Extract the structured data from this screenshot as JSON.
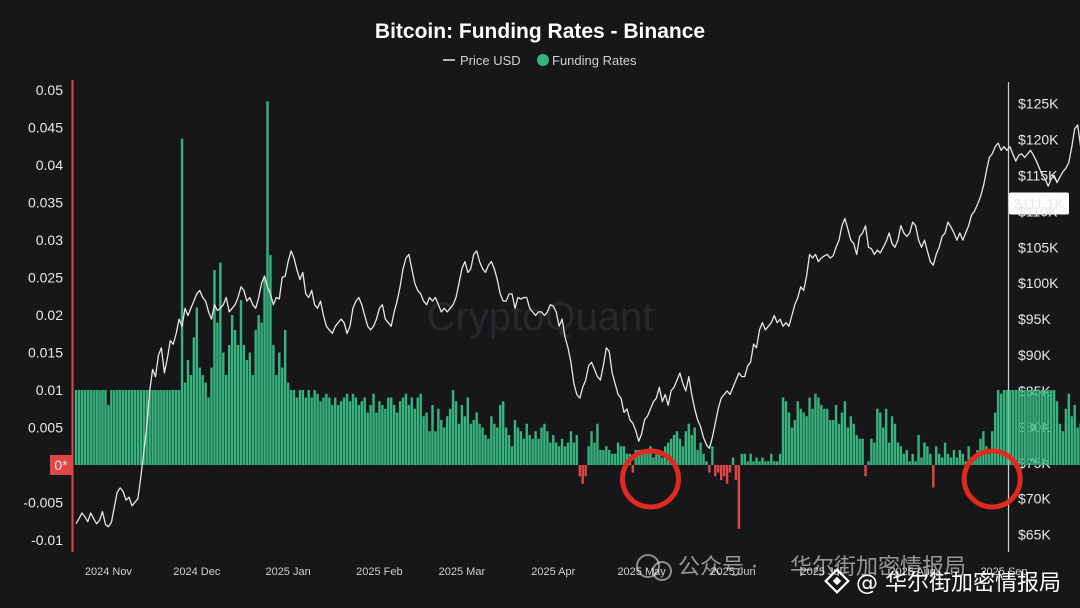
{
  "chart_data": {
    "type": "bar+line",
    "title": "Bitcoin: Funding Rates - Binance",
    "legend": [
      {
        "label": "Price USD",
        "color": "#e6e6e6",
        "marker": "line"
      },
      {
        "label": "Funding Rates",
        "color": "#36b37e",
        "marker": "dot"
      }
    ],
    "legend_placement": "top-center",
    "watermark": "CryptoQuant",
    "x_ticks": [
      "2024 Nov",
      "2024 Dec",
      "2025 Jan",
      "2025 Feb",
      "2025 Mar",
      "2025 Apr",
      "2025 May",
      "2025 Jun",
      "2025 Jul",
      "2025 Aug",
      "2025 Sep"
    ],
    "x_range": [
      "2024-10-21",
      "2025-09-01"
    ],
    "y_left": {
      "label": "",
      "ylim": [
        -0.012,
        0.051
      ],
      "ticks": [
        "0.05",
        "0.045",
        "0.04",
        "0.035",
        "0.03",
        "0.025",
        "0.02",
        "0.015",
        "0.01",
        "0.005",
        "0*",
        "-0.005",
        "-0.01"
      ],
      "tick_values": [
        0.05,
        0.045,
        0.04,
        0.035,
        0.03,
        0.025,
        0.02,
        0.015,
        0.01,
        0.005,
        0,
        -0.005,
        -0.01
      ]
    },
    "y_right": {
      "label": "",
      "ylim": [
        65000,
        128000
      ],
      "ticks": [
        "$125K",
        "$120K",
        "$115K",
        "$111.1K",
        "$110K",
        "$105K",
        "$100K",
        "$95K",
        "$90K",
        "$85K",
        "$80K",
        "$75K",
        "$70K",
        "$65K"
      ],
      "tick_values": [
        125000,
        120000,
        115000,
        111100,
        110000,
        105000,
        100000,
        95000,
        90000,
        85000,
        80000,
        75000,
        70000,
        65000
      ],
      "current_value_label": "$111.1K"
    },
    "series": [
      {
        "name": "Funding Rates",
        "type": "bar",
        "color_positive": "#36b37e",
        "color_negative": "#e04646",
        "x_start": "2024-10-21",
        "step_days": 1,
        "values": [
          0.01,
          0.01,
          0.01,
          0.01,
          0.01,
          0.01,
          0.01,
          0.01,
          0.01,
          0.01,
          0.01,
          0.008,
          0.01,
          0.01,
          0.01,
          0.01,
          0.01,
          0.01,
          0.01,
          0.01,
          0.01,
          0.01,
          0.01,
          0.01,
          0.01,
          0.01,
          0.01,
          0.01,
          0.01,
          0.01,
          0.01,
          0.01,
          0.01,
          0.01,
          0.01,
          0.01,
          0.0435,
          0.011,
          0.014,
          0.012,
          0.017,
          0.021,
          0.013,
          0.012,
          0.011,
          0.009,
          0.013,
          0.026,
          0.019,
          0.027,
          0.015,
          0.012,
          0.016,
          0.02,
          0.018,
          0.016,
          0.022,
          0.016,
          0.014,
          0.015,
          0.012,
          0.018,
          0.02,
          0.019,
          0.025,
          0.0485,
          0.028,
          0.016,
          0.012,
          0.015,
          0.013,
          0.018,
          0.011,
          0.01,
          0.01,
          0.009,
          0.01,
          0.01,
          0.009,
          0.01,
          0.009,
          0.01,
          0.0095,
          0.0085,
          0.009,
          0.0095,
          0.009,
          0.008,
          0.009,
          0.008,
          0.0085,
          0.009,
          0.0095,
          0.0085,
          0.0095,
          0.009,
          0.008,
          0.0085,
          0.009,
          0.007,
          0.008,
          0.0095,
          0.007,
          0.0085,
          0.008,
          0.0075,
          0.009,
          0.009,
          0.008,
          0.007,
          0.0085,
          0.009,
          0.0095,
          0.008,
          0.009,
          0.0075,
          0.009,
          0.0095,
          0.0065,
          0.007,
          0.0045,
          0.008,
          0.0045,
          0.0075,
          0.006,
          0.005,
          0.0065,
          0.0075,
          0.01,
          0.0085,
          0.0055,
          0.008,
          0.0065,
          0.009,
          0.0055,
          0.006,
          0.007,
          0.0055,
          0.005,
          0.004,
          0.0035,
          0.0065,
          0.0055,
          0.005,
          0.008,
          0.0085,
          0.005,
          0.004,
          0.0025,
          0.006,
          0.005,
          0.0045,
          0.0035,
          0.0055,
          0.004,
          0.0035,
          0.0045,
          0.0035,
          0.005,
          0.0055,
          0.0045,
          0.003,
          0.004,
          0.003,
          0.0025,
          0.0035,
          0.0025,
          0.003,
          0.0045,
          0.003,
          0.004,
          -0.0015,
          -0.0025,
          -0.0015,
          0.0025,
          0.0045,
          0.003,
          0.0055,
          0.002,
          0.002,
          0.0025,
          0.002,
          0.0015,
          0.0015,
          0.003,
          0.0025,
          0.0025,
          0.0015,
          0.0015,
          -0.001,
          0.002,
          0.002,
          0.0015,
          0.002,
          0.0015,
          0.0025,
          0.001,
          0.0015,
          0.002,
          0.001,
          0.0025,
          0.003,
          0.0035,
          0.004,
          0.0045,
          0.0035,
          0.0025,
          0.0045,
          0.0055,
          0.004,
          0.005,
          0.002,
          0.003,
          0.0015,
          0.0005,
          -0.001,
          0.0025,
          -0.0015,
          -0.001,
          -0.002,
          -0.0015,
          -0.0025,
          -0.001,
          0.001,
          -0.002,
          -0.0085,
          0.0015,
          0.0015,
          0.0005,
          0.0015,
          0.0005,
          0.001,
          0.0005,
          0.001,
          0.0005,
          0.0005,
          0.0015,
          0.0005,
          0.0005,
          0.0015,
          0.009,
          0.0085,
          0.007,
          0.005,
          0.006,
          0.0085,
          0.0075,
          0.007,
          0.0065,
          0.009,
          0.0075,
          0.0095,
          0.009,
          0.008,
          0.0075,
          0.0075,
          0.006,
          0.006,
          0.008,
          0.0055,
          0.007,
          0.0085,
          0.005,
          0.0065,
          0.0055,
          0.004,
          0.0035,
          0.0035,
          -0.0015,
          0.0005,
          0.0035,
          0.003,
          0.0075,
          0.007,
          0.005,
          0.0075,
          0.003,
          0.0065,
          0.0055,
          0.003,
          0.0025,
          0.0015,
          0.002,
          0.0005,
          0.0015,
          0.0005,
          0.004,
          0.001,
          0.003,
          0.0025,
          0.0015,
          -0.003,
          0.0025,
          0.0015,
          0.001,
          0.003,
          0.0015,
          0.001,
          0.002,
          0.001,
          0.002,
          0.0015,
          0.0005,
          0.0025,
          0.0005,
          0.001,
          0.002,
          0.0035,
          0.0045,
          0.0025,
          0.0015,
          0.0045,
          0.007,
          0.01,
          0.0095,
          0.01,
          0.01,
          0.01,
          0.01,
          0.01,
          0.01,
          0.01,
          0.01,
          0.01,
          0.01,
          0.01,
          0.01,
          0.01,
          0.01,
          0.01,
          0.01,
          0.01,
          0.01,
          0.0085,
          0.0055,
          0.0045,
          0.0075,
          0.0095,
          0.0065,
          0.008,
          0.005,
          0.0055,
          0.007,
          0.0075,
          0.007,
          0.0065,
          0.005,
          0.007,
          0.008,
          0.01,
          0.0055,
          0.0075,
          0.0065,
          0.005,
          0.0075,
          0.0085,
          0.0065,
          0.004,
          0.0055,
          0.0075,
          0.007,
          0.0045,
          0.005,
          0.0055,
          0.0065,
          0.0065,
          0.0075,
          0.004,
          0.0035,
          0.006,
          0.007,
          0.006,
          0.0065,
          0.0035,
          0.006,
          0.006,
          0.0045,
          0.0035,
          0.0045,
          0.007,
          0.0065,
          0.0035,
          0.006,
          -0.001,
          0.003,
          0.0045,
          0.0035,
          0.0045,
          0.0085,
          0.0045,
          0.005,
          0.003,
          0.0095,
          0.01,
          0.0095,
          0.009,
          0.0085,
          0.0075,
          0.0035,
          0.0045,
          0.004,
          0.0035,
          0.0035,
          -0.0015,
          -0.0035,
          -0.003,
          -0.0025,
          0.0015,
          0.002,
          -0.0005,
          0.002,
          0.0035,
          0.0055
        ]
      },
      {
        "name": "Price USD",
        "type": "line",
        "color": "#e6e6e6",
        "x_start": "2024-10-21",
        "step_days": 1,
        "values": [
          66500,
          67200,
          68000,
          67500,
          66800,
          68000,
          67200,
          66500,
          67000,
          68200,
          66400,
          66100,
          66700,
          68800,
          70900,
          71500,
          71000,
          69800,
          70200,
          69000,
          69500,
          70000,
          73000,
          76500,
          80000,
          85000,
          88000,
          87000,
          90000,
          91000,
          87500,
          89500,
          92000,
          91500,
          93000,
          95000,
          94000,
          96500,
          95500,
          96500,
          97500,
          98500,
          99000,
          98000,
          97500,
          96000,
          95000,
          97000,
          96200,
          96500,
          97000,
          98000,
          96000,
          96500,
          97000,
          98000,
          99500,
          99000,
          97500,
          98000,
          97000,
          96500,
          98000,
          100000,
          101000,
          99500,
          98500,
          97000,
          98000,
          97800,
          100800,
          101000,
          103000,
          104500,
          103500,
          101800,
          100500,
          101500,
          98500,
          98000,
          99000,
          97000,
          96500,
          97500,
          95500,
          94000,
          93500,
          93000,
          94000,
          94500,
          95000,
          94500,
          93000,
          94000,
          96500,
          97500,
          98000,
          97000,
          95500,
          94000,
          93500,
          94000,
          95000,
          96500,
          97000,
          95000,
          94500,
          94000,
          96000,
          97500,
          99500,
          102000,
          103500,
          104000,
          102000,
          100000,
          99000,
          98500,
          97500,
          97000,
          98000,
          97500,
          98000,
          97000,
          96000,
          96500,
          96000,
          96500,
          97000,
          98000,
          100000,
          102000,
          103000,
          101500,
          102000,
          104000,
          104500,
          103000,
          102000,
          101500,
          102500,
          103000,
          102000,
          100500,
          98500,
          97500,
          97500,
          98500,
          98500,
          96500,
          98000,
          97800,
          98000,
          98000,
          96500,
          96000,
          95500,
          96000,
          96000,
          95500,
          96000,
          97000,
          96800,
          96000,
          94000,
          95000,
          92500,
          91000,
          89000,
          86000,
          84500,
          84000,
          85500,
          86500,
          88500,
          89000,
          88000,
          87000,
          86500,
          88500,
          91000,
          90500,
          87500,
          86000,
          84500,
          84000,
          82000,
          82500,
          81000,
          80500,
          79500,
          78000,
          79000,
          81000,
          81500,
          82500,
          83500,
          84000,
          85500,
          83500,
          84500,
          83000,
          85000,
          85500,
          86500,
          87500,
          86000,
          85000,
          87000,
          84500,
          82500,
          81000,
          80000,
          78500,
          77500,
          77000,
          78500,
          80500,
          82500,
          84000,
          84500,
          85000,
          84500,
          85500,
          86500,
          87500,
          87000,
          87000,
          88500,
          89000,
          91500,
          91000,
          93500,
          94500,
          93500,
          94000,
          94500,
          95500,
          94500,
          95000,
          94000,
          94500,
          94000,
          95500,
          97000,
          98000,
          99500,
          99000,
          101000,
          104000,
          103500,
          104000,
          103000,
          103500,
          103800,
          104000,
          103500,
          103800,
          105000,
          106000,
          108000,
          109000,
          107500,
          106000,
          105500,
          104000,
          106500,
          107000,
          108000,
          105000,
          104800,
          104000,
          104600,
          104200,
          105000,
          105800,
          107000,
          105500,
          105000,
          106000,
          108000,
          107000,
          106500,
          107000,
          108500,
          108000,
          106000,
          105000,
          106000,
          104500,
          103000,
          102500,
          104000,
          105000,
          106500,
          107000,
          108500,
          107800,
          107000,
          106000,
          107000,
          106000,
          107000,
          108000,
          109500,
          110000,
          111000,
          112000,
          113500,
          115500,
          117500,
          118000,
          119000,
          119500,
          118500,
          119000,
          118500,
          119000,
          118000,
          117000,
          117800,
          118000,
          117500,
          118000,
          118500,
          117800,
          117000,
          116000,
          115000,
          114500,
          113500,
          114500,
          115000,
          114000,
          114800,
          115500,
          116000,
          116800,
          119000,
          121500,
          122000,
          119000,
          117000,
          118000,
          117500,
          116000,
          115500,
          114500,
          113000,
          112000,
          111000,
          112500,
          110000,
          110500,
          110000,
          110500,
          111000,
          112500,
          113000,
          112000,
          110500,
          111500,
          112000,
          113000,
          114000,
          115000,
          115500,
          115000,
          114000,
          114500,
          115500,
          116000,
          114000,
          111000,
          110000,
          109000,
          110000,
          112000,
          115500,
          119000,
          122000,
          123500,
          124000,
          123000,
          124500,
          121000,
          118000,
          116000,
          113500,
          112500,
          113000,
          111500,
          111100
        ]
      }
    ],
    "annotations": [
      {
        "type": "highlight-circle",
        "color": "#e02a1f",
        "target_date": "2025-05-04",
        "target_series": "Funding Rates"
      },
      {
        "type": "highlight-circle",
        "color": "#e02a1f",
        "target_date": "2025-08-28",
        "target_series": "Funding Rates"
      }
    ],
    "grid": false
  },
  "footer": {
    "text_faint": "公众号 · ",
    "text": "华尔街加密情报局",
    "badge": "@ 华尔街加密情报局"
  },
  "colors": {
    "background": "#17171a",
    "accent_red": "#e04646",
    "funding_green": "#36b37e"
  }
}
